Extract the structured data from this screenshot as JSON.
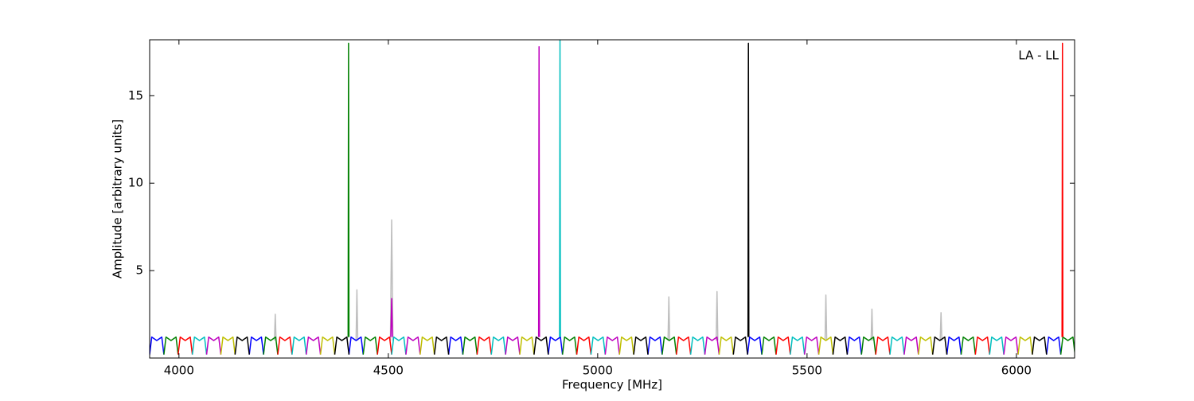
{
  "chart_data": {
    "type": "line",
    "annotation": "LA - LL",
    "x_label": "Frequency [MHz]",
    "y_label": "Amplitude [arbitrary units]",
    "xlim": [
      3930,
      6139
    ],
    "ylim": [
      0,
      18.2
    ],
    "xticks": [
      4000,
      4500,
      5000,
      5500,
      6000
    ],
    "yticks": [
      5,
      10,
      15
    ],
    "series": [
      {
        "color": "#bebebe",
        "x": [
          4228,
          4230,
          4232,
          null,
          4423,
          4425,
          4427,
          null,
          4505,
          4508,
          4511,
          null,
          5168,
          5170,
          5172,
          null,
          5283,
          5285,
          5287,
          null,
          5543,
          5545,
          5547,
          null,
          5653,
          5655,
          5657,
          null,
          5818,
          5820,
          5822
        ],
        "values": [
          1,
          2.5,
          1,
          null,
          1,
          3.9,
          1,
          null,
          1,
          7.9,
          1,
          null,
          1,
          3.5,
          1,
          null,
          1,
          3.8,
          1,
          null,
          1,
          3.6,
          1,
          null,
          1,
          2.8,
          1,
          null,
          1,
          2.6,
          1
        ]
      },
      {
        "color": "#0000ff",
        "x": [
          3930,
          3935,
          3947,
          3959,
          3964,
          null,
          4168,
          4173,
          4185,
          4197,
          4202,
          null,
          4406,
          4411,
          4423,
          4435,
          4440,
          null,
          4644,
          4649,
          4661,
          4673,
          4678,
          null,
          4882,
          4887,
          4899,
          4911,
          4916,
          null,
          5120,
          5125,
          5137,
          5149,
          5154,
          null,
          5358,
          5363,
          5375,
          5387,
          5392,
          null,
          5596,
          5601,
          5613,
          5625,
          5630,
          null,
          5834,
          5839,
          5851,
          5863,
          5868,
          null,
          6072,
          6077,
          6089,
          6101,
          6106
        ],
        "values": [
          0.2,
          1.2,
          1.0,
          1.2,
          0.2,
          null,
          0.2,
          1.2,
          1.0,
          1.2,
          0.2,
          null,
          0.2,
          1.2,
          1.0,
          1.2,
          0.2,
          null,
          0.2,
          1.2,
          1.0,
          1.2,
          0.2,
          null,
          0.2,
          1.2,
          1.0,
          1.2,
          0.2,
          null,
          0.2,
          1.2,
          1.0,
          1.2,
          0.2,
          null,
          0.2,
          1.2,
          1.0,
          1.2,
          0.2,
          null,
          0.2,
          1.2,
          1.0,
          1.2,
          0.2,
          null,
          0.2,
          1.2,
          1.0,
          1.2,
          0.2,
          null,
          0.2,
          1.2,
          1.0,
          1.2,
          0.2
        ]
      },
      {
        "color": "#008000",
        "x": [
          3964,
          3969,
          3981,
          3993,
          3998,
          null,
          4202,
          4207,
          4219,
          4231,
          4236,
          null,
          4440,
          4445,
          4457,
          4469,
          4474,
          null,
          4678,
          4683,
          4695,
          4707,
          4712,
          null,
          4916,
          4921,
          4933,
          4945,
          4950,
          null,
          5154,
          5159,
          5171,
          5183,
          5188,
          null,
          5392,
          5397,
          5409,
          5421,
          5426,
          null,
          5630,
          5635,
          5647,
          5659,
          5664,
          null,
          5868,
          5873,
          5885,
          5897,
          5902,
          null,
          6106,
          6111,
          6123,
          6135,
          6140
        ],
        "values": [
          0.2,
          1.2,
          1.0,
          1.2,
          0.2,
          null,
          0.2,
          1.2,
          1.0,
          1.2,
          0.2,
          null,
          0.2,
          1.2,
          1.0,
          1.2,
          0.2,
          null,
          0.2,
          1.2,
          1.0,
          1.2,
          0.2,
          null,
          0.2,
          1.2,
          1.0,
          1.2,
          0.2,
          null,
          0.2,
          1.2,
          1.0,
          1.2,
          0.2,
          null,
          0.2,
          1.2,
          1.0,
          1.2,
          0.2,
          null,
          0.2,
          1.2,
          1.0,
          1.2,
          0.2,
          null,
          0.2,
          1.2,
          1.0,
          1.2,
          0.2,
          null,
          0.2,
          1.2,
          1.0,
          1.2,
          0.2
        ]
      },
      {
        "color": "#ff0000",
        "x": [
          3998,
          4003,
          4015,
          4027,
          4032,
          null,
          4236,
          4241,
          4253,
          4265,
          4270,
          null,
          4474,
          4479,
          4491,
          4503,
          4508,
          null,
          4712,
          4717,
          4729,
          4741,
          4746,
          null,
          4950,
          4955,
          4967,
          4979,
          4984,
          null,
          5188,
          5193,
          5205,
          5217,
          5222,
          null,
          5426,
          5431,
          5443,
          5455,
          5460,
          null,
          5664,
          5669,
          5681,
          5693,
          5698,
          null,
          5902,
          5907,
          5919,
          5931,
          5936
        ],
        "values": [
          0.2,
          1.2,
          1.0,
          1.2,
          0.2,
          null,
          0.2,
          1.2,
          1.0,
          1.2,
          0.2,
          null,
          0.2,
          1.2,
          1.0,
          1.2,
          0.2,
          null,
          0.2,
          1.2,
          1.0,
          1.2,
          0.2,
          null,
          0.2,
          1.2,
          1.0,
          1.2,
          0.2,
          null,
          0.2,
          1.2,
          1.0,
          1.2,
          0.2,
          null,
          0.2,
          1.2,
          1.0,
          1.2,
          0.2,
          null,
          0.2,
          1.2,
          1.0,
          1.2,
          0.2,
          null,
          0.2,
          1.2,
          1.0,
          1.2,
          0.2
        ]
      },
      {
        "color": "#00bfbf",
        "x": [
          4032,
          4037,
          4049,
          4061,
          4066,
          null,
          4270,
          4275,
          4287,
          4299,
          4304,
          null,
          4508,
          4513,
          4525,
          4537,
          4542,
          null,
          4746,
          4751,
          4763,
          4775,
          4780,
          null,
          4984,
          4989,
          5001,
          5013,
          5018,
          null,
          5222,
          5227,
          5239,
          5251,
          5256,
          null,
          5460,
          5465,
          5477,
          5489,
          5494,
          null,
          5698,
          5703,
          5715,
          5727,
          5732,
          null,
          5936,
          5941,
          5953,
          5965,
          5970
        ],
        "values": [
          0.2,
          1.2,
          1.0,
          1.2,
          0.2,
          null,
          0.2,
          1.2,
          1.0,
          1.2,
          0.2,
          null,
          0.2,
          1.2,
          1.0,
          1.2,
          0.2,
          null,
          0.2,
          1.2,
          1.0,
          1.2,
          0.2,
          null,
          0.2,
          1.2,
          1.0,
          1.2,
          0.2,
          null,
          0.2,
          1.2,
          1.0,
          1.2,
          0.2,
          null,
          0.2,
          1.2,
          1.0,
          1.2,
          0.2,
          null,
          0.2,
          1.2,
          1.0,
          1.2,
          0.2,
          null,
          0.2,
          1.2,
          1.0,
          1.2,
          0.2
        ]
      },
      {
        "color": "#bf00bf",
        "x": [
          4066,
          4071,
          4083,
          4095,
          4100,
          null,
          4304,
          4309,
          4321,
          4333,
          4338,
          null,
          4542,
          4547,
          4559,
          4571,
          4576,
          null,
          4780,
          4785,
          4797,
          4809,
          4814,
          null,
          5018,
          5023,
          5035,
          5047,
          5052,
          null,
          5256,
          5261,
          5273,
          5285,
          5290,
          null,
          5494,
          5499,
          5511,
          5523,
          5528,
          null,
          5732,
          5737,
          5749,
          5761,
          5766,
          null,
          5970,
          5975,
          5987,
          5999,
          6004
        ],
        "values": [
          0.2,
          1.2,
          1.0,
          1.2,
          0.2,
          null,
          0.2,
          1.2,
          1.0,
          1.2,
          0.2,
          null,
          0.2,
          1.2,
          1.0,
          1.2,
          0.2,
          null,
          0.2,
          1.2,
          1.0,
          1.2,
          0.2,
          null,
          0.2,
          1.2,
          1.0,
          1.2,
          0.2,
          null,
          0.2,
          1.2,
          1.0,
          1.2,
          0.2,
          null,
          0.2,
          1.2,
          1.0,
          1.2,
          0.2,
          null,
          0.2,
          1.2,
          1.0,
          1.2,
          0.2,
          null,
          0.2,
          1.2,
          1.0,
          1.2,
          0.2
        ]
      },
      {
        "color": "#bfbf00",
        "x": [
          4100,
          4105,
          4117,
          4129,
          4134,
          null,
          4338,
          4343,
          4355,
          4367,
          4372,
          null,
          4576,
          4581,
          4593,
          4605,
          4610,
          null,
          4814,
          4819,
          4831,
          4843,
          4848,
          null,
          5052,
          5057,
          5069,
          5081,
          5086,
          null,
          5290,
          5295,
          5307,
          5319,
          5324,
          null,
          5528,
          5533,
          5545,
          5557,
          5562,
          null,
          5766,
          5771,
          5783,
          5795,
          5800,
          null,
          6004,
          6009,
          6021,
          6033,
          6038
        ],
        "values": [
          0.2,
          1.2,
          1.0,
          1.2,
          0.2,
          null,
          0.2,
          1.2,
          1.0,
          1.2,
          0.2,
          null,
          0.2,
          1.2,
          1.0,
          1.2,
          0.2,
          null,
          0.2,
          1.2,
          1.0,
          1.2,
          0.2,
          null,
          0.2,
          1.2,
          1.0,
          1.2,
          0.2,
          null,
          0.2,
          1.2,
          1.0,
          1.2,
          0.2,
          null,
          0.2,
          1.2,
          1.0,
          1.2,
          0.2,
          null,
          0.2,
          1.2,
          1.0,
          1.2,
          0.2,
          null,
          0.2,
          1.2,
          1.0,
          1.2,
          0.2
        ]
      },
      {
        "color": "#000000",
        "x": [
          4134,
          4139,
          4151,
          4163,
          4168,
          null,
          4372,
          4377,
          4389,
          4401,
          4406,
          null,
          4610,
          4615,
          4627,
          4639,
          4644,
          null,
          4848,
          4853,
          4865,
          4877,
          4882,
          null,
          5086,
          5091,
          5103,
          5115,
          5120,
          null,
          5324,
          5329,
          5341,
          5353,
          5358,
          null,
          5562,
          5567,
          5579,
          5591,
          5596,
          null,
          5800,
          5805,
          5817,
          5829,
          5834,
          null,
          6038,
          6043,
          6055,
          6067,
          6072
        ],
        "values": [
          0.2,
          1.2,
          1.0,
          1.2,
          0.2,
          null,
          0.2,
          1.2,
          1.0,
          1.2,
          0.2,
          null,
          0.2,
          1.2,
          1.0,
          1.2,
          0.2,
          null,
          0.2,
          1.2,
          1.0,
          1.2,
          0.2,
          null,
          0.2,
          1.2,
          1.0,
          1.2,
          0.2,
          null,
          0.2,
          1.2,
          1.0,
          1.2,
          0.2,
          null,
          0.2,
          1.2,
          1.0,
          1.2,
          0.2,
          null,
          0.2,
          1.2,
          1.0,
          1.2,
          0.2,
          null,
          0.2,
          1.2,
          1.0,
          1.2,
          0.2
        ]
      },
      {
        "color": "#008000",
        "x": [
          4404,
          4405,
          4406
        ],
        "values": [
          1.2,
          18,
          1.2
        ]
      },
      {
        "color": "#bf00bf",
        "x": [
          4506,
          4508,
          4510
        ],
        "values": [
          1.2,
          3.4,
          1.2
        ]
      },
      {
        "color": "#bf00bf",
        "x": [
          4859,
          4860,
          4861
        ],
        "values": [
          1.2,
          17.8,
          1.2
        ]
      },
      {
        "color": "#00bfbf",
        "x": [
          4909,
          4910,
          4911
        ],
        "values": [
          1.2,
          18.2,
          1.2
        ]
      },
      {
        "color": "#000000",
        "x": [
          5359,
          5360,
          5361
        ],
        "values": [
          1.2,
          18,
          1.2
        ]
      },
      {
        "color": "#ff0000",
        "x": [
          6109,
          6110,
          6111
        ],
        "values": [
          1.2,
          18,
          1.2
        ]
      }
    ]
  }
}
